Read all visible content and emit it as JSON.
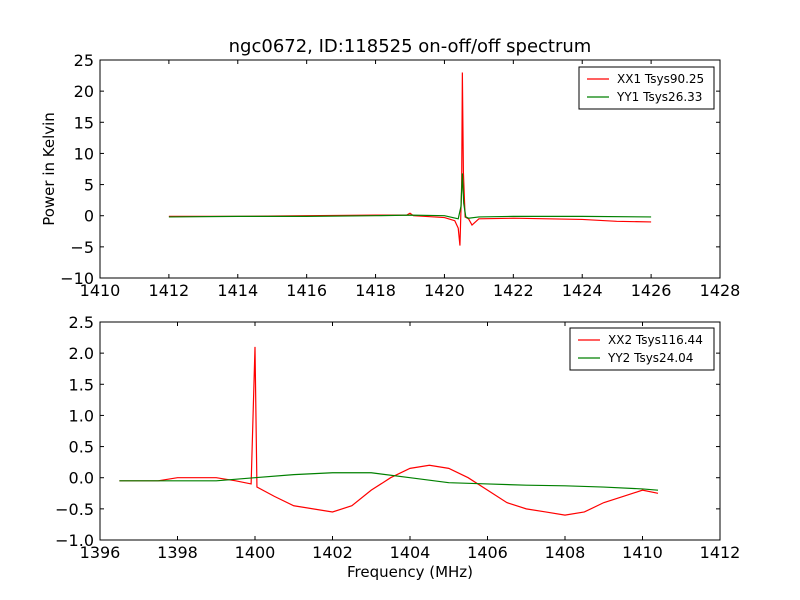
{
  "chart_data": [
    {
      "type": "line",
      "title": "ngc0672, ID:118525 on-off/off spectrum",
      "xlabel": "",
      "ylabel": "Power in Kelvin",
      "xlim": [
        1410,
        1428
      ],
      "ylim": [
        -10,
        25
      ],
      "xticks": [
        1410,
        1412,
        1414,
        1416,
        1418,
        1420,
        1422,
        1424,
        1426,
        1428
      ],
      "yticks": [
        -10,
        -5,
        0,
        5,
        10,
        15,
        20,
        25
      ],
      "legend_position": "top-right",
      "grid": false,
      "series": [
        {
          "name": "XX1 Tsys90.25",
          "color": "#ff0000",
          "x": [
            1412,
            1414,
            1416,
            1418,
            1418.9,
            1419,
            1419.1,
            1420,
            1420.3,
            1420.4,
            1420.45,
            1420.5,
            1420.52,
            1420.55,
            1420.6,
            1420.7,
            1420.8,
            1420.9,
            1421,
            1422,
            1423,
            1424,
            1425,
            1426
          ],
          "y": [
            -0.1,
            -0.1,
            0.0,
            0.1,
            0.1,
            0.4,
            0.0,
            -0.3,
            -0.8,
            -2.0,
            -4.8,
            5.0,
            23.0,
            7.0,
            -0.2,
            -0.5,
            -1.5,
            -1.0,
            -0.5,
            -0.4,
            -0.5,
            -0.6,
            -0.9,
            -1.0
          ]
        },
        {
          "name": "YY1 Tsys26.33",
          "color": "#008000",
          "x": [
            1412,
            1414,
            1416,
            1418,
            1419,
            1420,
            1420.4,
            1420.48,
            1420.52,
            1420.56,
            1420.62,
            1420.7,
            1421,
            1422,
            1424,
            1426
          ],
          "y": [
            -0.2,
            -0.1,
            -0.1,
            0.0,
            0.1,
            0.0,
            -0.5,
            1.5,
            6.8,
            2.0,
            -0.2,
            -0.4,
            -0.2,
            -0.1,
            -0.1,
            -0.2
          ]
        }
      ]
    },
    {
      "type": "line",
      "title": "",
      "xlabel": "Frequency (MHz)",
      "ylabel": "",
      "xlim": [
        1396,
        1412
      ],
      "ylim": [
        -1.0,
        2.5
      ],
      "xticks": [
        1396,
        1398,
        1400,
        1402,
        1404,
        1406,
        1408,
        1410,
        1412
      ],
      "yticks": [
        -1.0,
        -0.5,
        0.0,
        0.5,
        1.0,
        1.5,
        2.0,
        2.5
      ],
      "yticklabels": [
        "-1.0",
        "-0.5",
        "0.0",
        "0.5",
        "1.0",
        "1.5",
        "2.0",
        "2.5"
      ],
      "legend_position": "top-right",
      "grid": false,
      "series": [
        {
          "name": "XX2 Tsys116.44",
          "color": "#ff0000",
          "x": [
            1396.5,
            1397,
            1397.5,
            1398,
            1398.5,
            1399,
            1399.5,
            1399.9,
            1400,
            1400.05,
            1400.5,
            1401,
            1401.5,
            1402,
            1402.5,
            1403,
            1403.5,
            1404,
            1404.5,
            1405,
            1405.5,
            1406,
            1406.5,
            1407,
            1407.5,
            1408,
            1408.5,
            1409,
            1409.5,
            1410,
            1410.4
          ],
          "y": [
            -0.05,
            -0.05,
            -0.05,
            0.0,
            0.0,
            0.0,
            -0.05,
            -0.1,
            2.1,
            -0.15,
            -0.3,
            -0.45,
            -0.5,
            -0.55,
            -0.45,
            -0.2,
            0.0,
            0.15,
            0.2,
            0.15,
            0.0,
            -0.2,
            -0.4,
            -0.5,
            -0.55,
            -0.6,
            -0.55,
            -0.4,
            -0.3,
            -0.2,
            -0.25
          ]
        },
        {
          "name": "YY2 Tsys24.04",
          "color": "#008000",
          "x": [
            1396.5,
            1397,
            1398,
            1399,
            1400,
            1401,
            1402,
            1403,
            1404,
            1405,
            1406,
            1407,
            1408,
            1409,
            1410,
            1410.4
          ],
          "y": [
            -0.05,
            -0.05,
            -0.05,
            -0.05,
            0.0,
            0.05,
            0.08,
            0.08,
            0.0,
            -0.08,
            -0.1,
            -0.12,
            -0.13,
            -0.15,
            -0.18,
            -0.2
          ]
        }
      ]
    }
  ]
}
